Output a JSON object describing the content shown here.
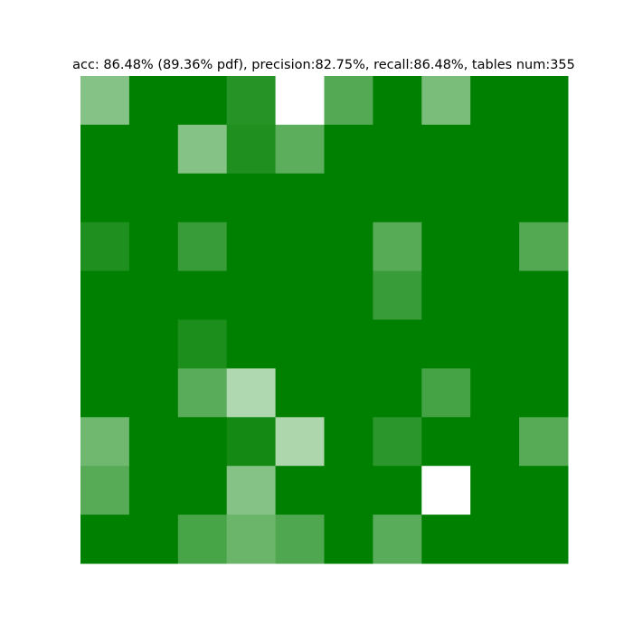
{
  "chart_data": {
    "type": "heatmap",
    "title": "acc: 86.48% (89.36% pdf), precision:82.75%, recall:86.48%, tables num:355",
    "xlabel": "",
    "ylabel": "",
    "rows": 10,
    "cols": 10,
    "grid": false,
    "axes_visible": false,
    "base_color": "#008000",
    "background_color": "#ffffff",
    "value_scale": "green intensity (1 = full green, 0 = white)",
    "values": [
      [
        0.48,
        1.0,
        1.0,
        0.85,
        0.0,
        0.67,
        1.0,
        0.52,
        1.0,
        1.0
      ],
      [
        1.0,
        1.0,
        0.48,
        0.88,
        0.64,
        1.0,
        1.0,
        1.0,
        1.0,
        1.0
      ],
      [
        1.0,
        1.0,
        1.0,
        1.0,
        1.0,
        1.0,
        1.0,
        1.0,
        1.0,
        1.0
      ],
      [
        0.88,
        1.0,
        0.78,
        1.0,
        1.0,
        1.0,
        0.66,
        1.0,
        1.0,
        0.68
      ],
      [
        1.0,
        1.0,
        1.0,
        1.0,
        1.0,
        1.0,
        0.78,
        1.0,
        1.0,
        1.0
      ],
      [
        1.0,
        1.0,
        0.89,
        1.0,
        1.0,
        1.0,
        1.0,
        1.0,
        1.0,
        1.0
      ],
      [
        1.0,
        1.0,
        0.65,
        0.31,
        1.0,
        1.0,
        1.0,
        0.73,
        1.0,
        1.0
      ],
      [
        0.56,
        1.0,
        1.0,
        0.92,
        0.32,
        1.0,
        0.83,
        1.0,
        1.0,
        0.66
      ],
      [
        0.66,
        1.0,
        1.0,
        0.48,
        1.0,
        1.0,
        1.0,
        0.0,
        1.0,
        1.0
      ],
      [
        1.0,
        1.0,
        0.72,
        0.58,
        0.69,
        1.0,
        0.65,
        1.0,
        1.0,
        1.0
      ]
    ]
  }
}
